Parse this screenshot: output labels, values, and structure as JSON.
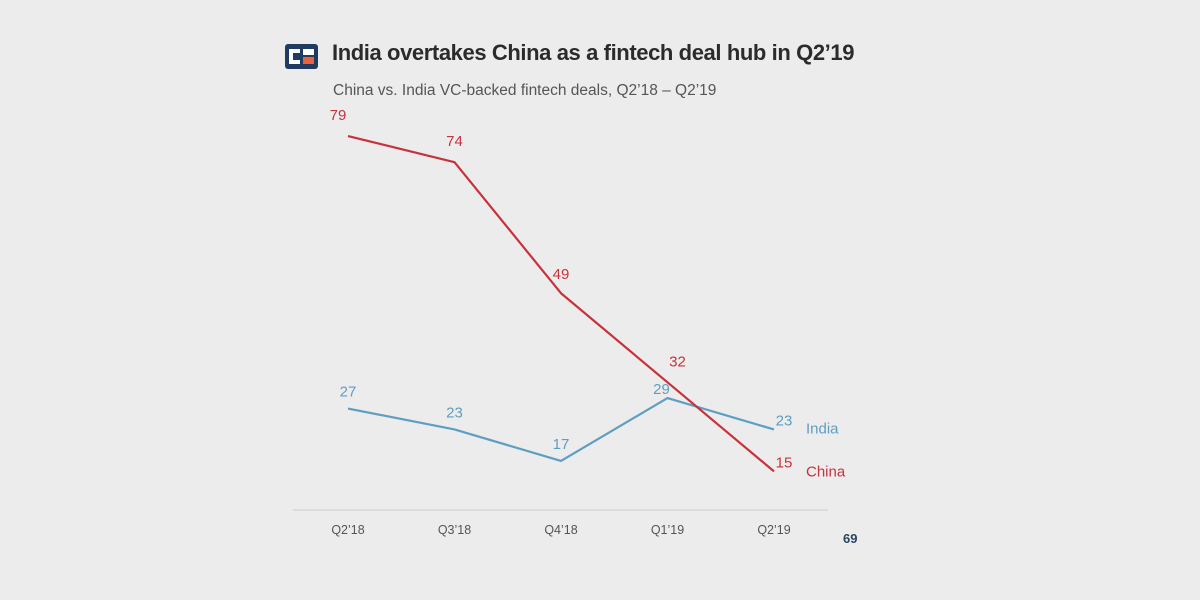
{
  "header": {
    "title": "India overtakes China as a fintech deal hub in Q2’19",
    "subtitle": "China vs. India VC-backed fintech deals, Q2’18 – Q2’19",
    "logo_icon": "cb-insights-logo-icon"
  },
  "footer": {
    "page_number": "69"
  },
  "colors": {
    "china": "#c8323c",
    "india": "#5e9ec3",
    "axis": "#cccccc",
    "logo_dark": "#1f3b5f",
    "logo_accent": "#e8623d"
  },
  "chart_data": {
    "type": "line",
    "title": "India overtakes China as a fintech deal hub in Q2’19",
    "subtitle": "China vs. India VC-backed fintech deals, Q2’18 – Q2’19",
    "xlabel": "",
    "ylabel": "",
    "categories": [
      "Q2’18",
      "Q3’18",
      "Q4’18",
      "Q1’19",
      "Q2’19"
    ],
    "ylim": [
      0,
      85
    ],
    "grid": false,
    "legend": "inline-right",
    "series": [
      {
        "name": "China",
        "color": "#c8323c",
        "values": [
          79,
          74,
          49,
          32,
          15
        ]
      },
      {
        "name": "India",
        "color": "#5e9ec3",
        "values": [
          27,
          23,
          17,
          29,
          23
        ]
      }
    ]
  }
}
